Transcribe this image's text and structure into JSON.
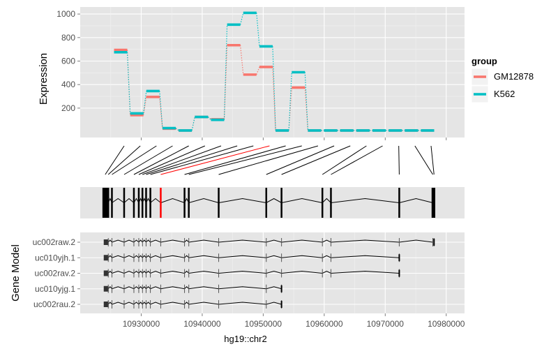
{
  "chart_data": {
    "type": "line",
    "expression_panel": {
      "ylabel": "Expression",
      "ylim": [
        -50,
        1060
      ],
      "y_ticks": [
        200,
        400,
        600,
        800,
        1000
      ],
      "legend": {
        "title": "group",
        "position": "right",
        "entries": [
          {
            "name": "GM12878",
            "color": "#f8766d"
          },
          {
            "name": "K562",
            "color": "#00bfc4"
          }
        ]
      },
      "exon_index": [
        1,
        2,
        3,
        4,
        5,
        6,
        7,
        8,
        9,
        10,
        11,
        12,
        13,
        14,
        15,
        16,
        17,
        18,
        19,
        20
      ],
      "series": [
        {
          "name": "GM12878",
          "color": "#f8766d",
          "values": [
            695,
            140,
            295,
            25,
            10,
            125,
            105,
            735,
            485,
            550,
            10,
            375,
            10,
            10,
            10,
            10,
            10,
            10,
            10,
            10
          ]
        },
        {
          "name": "K562",
          "color": "#00bfc4",
          "values": [
            675,
            155,
            345,
            30,
            10,
            125,
            100,
            910,
            1010,
            725,
            10,
            505,
            10,
            10,
            10,
            10,
            10,
            10,
            10,
            10
          ]
        }
      ]
    },
    "exon_map": {
      "exon_positions": [
        10924100,
        10924600,
        10925200,
        10927200,
        10928800,
        10929600,
        10930200,
        10930800,
        10931500,
        10933200,
        10937100,
        10937800,
        10942700,
        10950500,
        10953000,
        10959700,
        10961100,
        10972300,
        10977800,
        10978000
      ],
      "highlighted_exon": 10,
      "highlight_color": "#ff0000"
    },
    "gene_model": {
      "ylabel": "Gene Model",
      "transcripts": [
        {
          "name": "uc002raw.2",
          "end": 10978000
        },
        {
          "name": "uc010yjh.1",
          "end": 10972300
        },
        {
          "name": "uc002rav.2",
          "end": 10972300
        },
        {
          "name": "uc010yjg.1",
          "end": 10953000
        },
        {
          "name": "uc002rau.2",
          "end": 10953000
        }
      ],
      "start": 10924200
    },
    "xaxis": {
      "label": "hg19::chr2",
      "xlim": [
        10920000,
        10983000
      ],
      "ticks": [
        10930000,
        10940000,
        10950000,
        10960000,
        10970000,
        10980000
      ]
    }
  }
}
